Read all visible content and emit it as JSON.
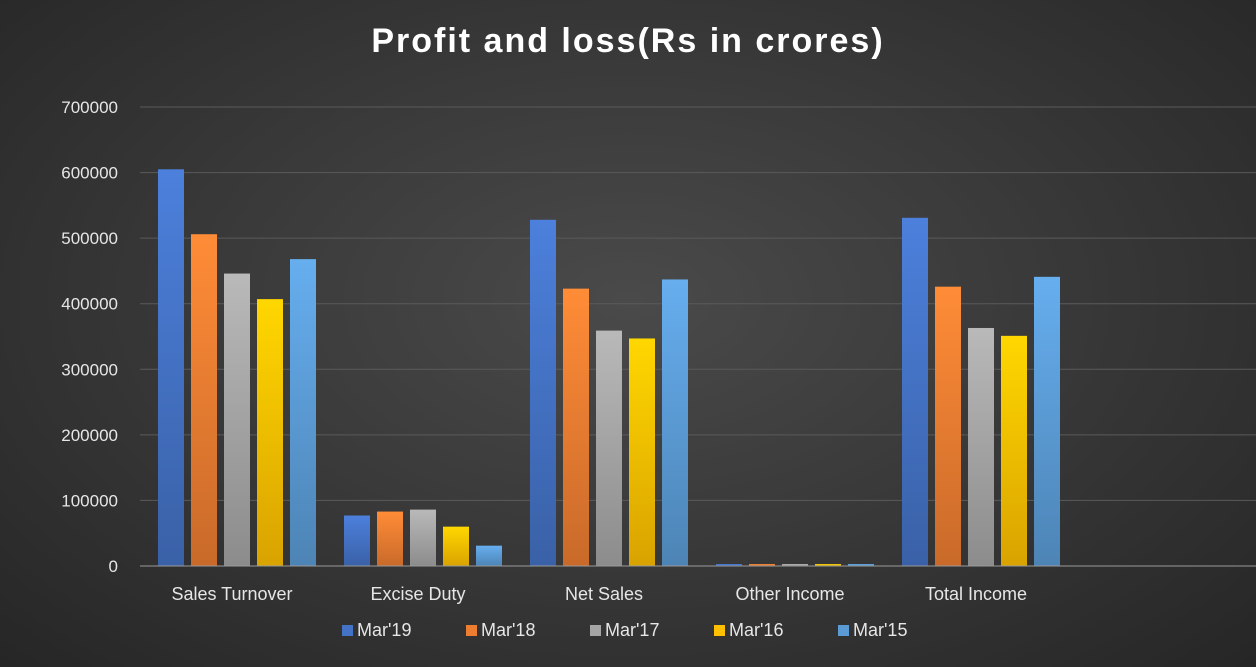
{
  "chart_data": {
    "type": "bar",
    "title": "Profit and loss(Rs in crores)",
    "xlabel": "",
    "ylabel": "",
    "ylim": [
      0,
      700000
    ],
    "yticks": [
      0,
      100000,
      200000,
      300000,
      400000,
      500000,
      600000,
      700000
    ],
    "grid": true,
    "legend_position": "bottom",
    "categories": [
      "Sales Turnover",
      "Excise Duty",
      "Net Sales",
      "Other Income",
      "Total Income"
    ],
    "series": [
      {
        "name": "Mar'19",
        "color": "#4472c4",
        "values": [
          605000,
          77000,
          528000,
          3000,
          531000
        ]
      },
      {
        "name": "Mar'18",
        "color": "#ed7d31",
        "values": [
          506000,
          83000,
          423000,
          3000,
          426000
        ]
      },
      {
        "name": "Mar'17",
        "color": "#a5a5a5",
        "values": [
          446000,
          86000,
          359000,
          3000,
          363000
        ]
      },
      {
        "name": "Mar'16",
        "color": "#ffc000",
        "values": [
          407000,
          60000,
          347000,
          3000,
          351000
        ]
      },
      {
        "name": "Mar'15",
        "color": "#5b9bd5",
        "values": [
          468000,
          31000,
          437000,
          3000,
          441000
        ]
      }
    ]
  }
}
